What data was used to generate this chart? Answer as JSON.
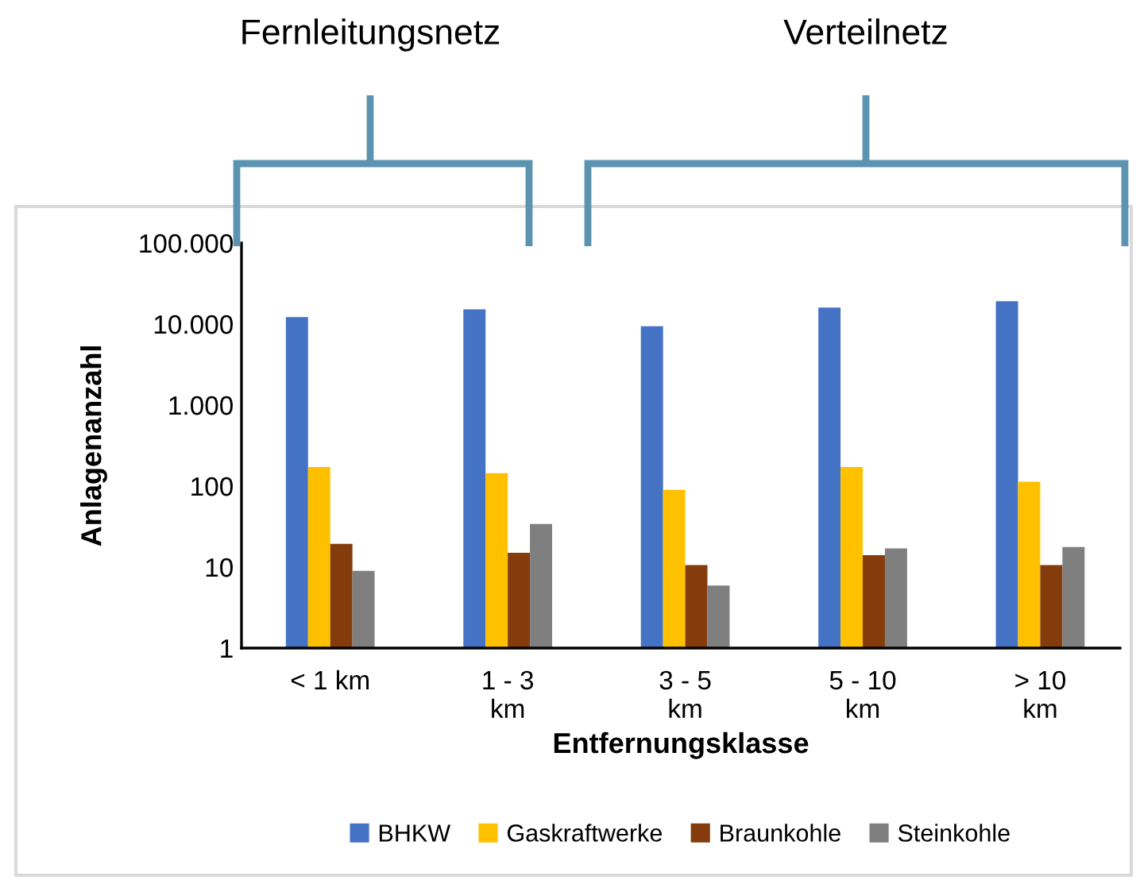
{
  "chart_data": {
    "type": "bar",
    "ylabel": "Anlagenanzahl",
    "xlabel": "Entfernungsklasse",
    "annotations": [
      "Fernleitungsnetz",
      "Verteilnetz"
    ],
    "categories": [
      "< 1 km",
      "1 - 3\nkm",
      "3 - 5\nkm",
      "5 - 10\nkm",
      "> 10\nkm"
    ],
    "series": [
      {
        "name": "BHKW",
        "color": "#4472c4",
        "values": [
          12200,
          15200,
          9400,
          16000,
          19100
        ]
      },
      {
        "name": "Gaskraftwerke",
        "color": "#ffc000",
        "values": [
          172,
          144,
          90,
          172,
          113
        ]
      },
      {
        "name": "Braunkohle",
        "color": "#843c0c",
        "values": [
          19.4,
          15,
          10.6,
          14,
          10.6
        ]
      },
      {
        "name": "Steinkohle",
        "color": "#7f7f7f",
        "values": [
          9,
          34,
          5.9,
          17,
          17.7
        ]
      }
    ],
    "log": "y",
    "ylim": [
      1,
      100000
    ],
    "yticks": [
      1,
      10,
      {
        "value": 100,
        "label": "100"
      },
      {
        "value": 1000,
        "label": "1.000"
      },
      {
        "value": 10000,
        "label": "10.000"
      },
      {
        "value": 100000,
        "label": "100.000"
      }
    ],
    "grid": false,
    "legend": "bottom"
  }
}
